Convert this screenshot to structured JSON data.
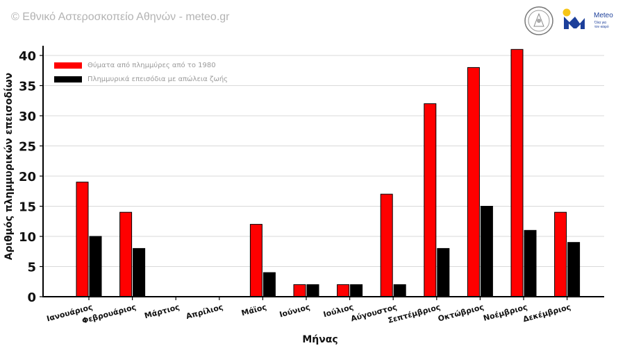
{
  "header": {
    "credit": "© Εθνικό Αστεροσκοπείο Αθηνών - meteo.gr",
    "brand": "Meteo",
    "tagline_1": "Όλα για",
    "tagline_2": "τον καιρό"
  },
  "colors": {
    "series_1": "#ff0000",
    "series_2": "#000000",
    "grid": "#d9d9d9",
    "brand": "#1c3f9a",
    "sun": "#f6c518"
  },
  "icons": {
    "seal": "seal-logo-icon",
    "meteo": "meteo-logo-icon"
  },
  "chart_data": {
    "type": "bar",
    "xlabel": "Μήνας",
    "ylabel": "Αριθμός πλημμυρικών επεισοδίων",
    "ylim": [
      0,
      40
    ],
    "yticks": [
      0,
      5,
      10,
      15,
      20,
      25,
      30,
      35,
      40
    ],
    "grid": "horizontal",
    "legend_position": "top-left",
    "categories": [
      "Ιανουάριος",
      "Φεβρουάριος",
      "Μάρτιος",
      "Απρίλιος",
      "Μάϊος",
      "Ιούνιος",
      "Ιούλιος",
      "Αύγουστος",
      "Σεπτέμβριος",
      "Οκτώβριος",
      "Νοέμβριος",
      "Δεκέμβριος"
    ],
    "series": [
      {
        "name": "Θύματα από πλημμύρες από το 1980",
        "color": "#ff0000",
        "values": [
          19,
          14,
          0,
          0,
          12,
          2,
          2,
          17,
          32,
          38,
          41,
          14
        ]
      },
      {
        "name": "Πλημμυρικά επεισόδια με απώλεια ζωής",
        "color": "#000000",
        "values": [
          10,
          8,
          0,
          0,
          4,
          2,
          2,
          2,
          8,
          15,
          11,
          9
        ]
      }
    ]
  }
}
